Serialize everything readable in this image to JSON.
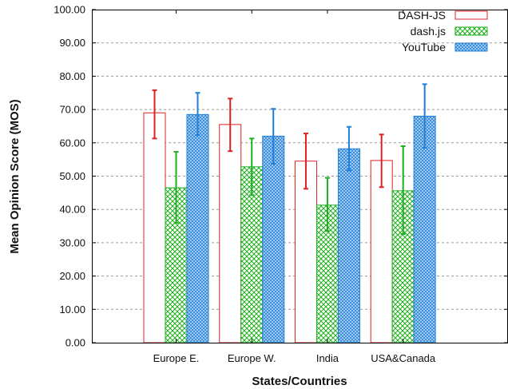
{
  "chart_data": {
    "type": "bar",
    "xlabel": "States/Countries",
    "ylabel": "Mean Opinion Score (MOS)",
    "ylim": [
      0,
      100
    ],
    "yticks": [
      "0.00",
      "10.00",
      "20.00",
      "30.00",
      "40.00",
      "50.00",
      "60.00",
      "70.00",
      "80.00",
      "90.00",
      "100.00"
    ],
    "grid": "horizontal dashed",
    "legend_position": "top-right",
    "categories": [
      "Europe E.",
      "Europe W.",
      "India",
      "USA&Canada"
    ],
    "series": [
      {
        "name": "DASH-JS",
        "pattern": "outline",
        "color": "#e02020",
        "values": [
          69.0,
          65.5,
          54.5,
          54.7
        ],
        "err_low": [
          61.3,
          57.5,
          46.2,
          46.7
        ],
        "err_high": [
          75.8,
          73.3,
          62.8,
          62.5
        ]
      },
      {
        "name": "dash.js",
        "pattern": "crosshatch",
        "color": "#1fae1f",
        "values": [
          46.5,
          52.8,
          41.3,
          45.6
        ],
        "err_low": [
          36.0,
          44.3,
          33.5,
          32.6
        ],
        "err_high": [
          57.3,
          61.3,
          49.5,
          59.0
        ]
      },
      {
        "name": "YouTube",
        "pattern": "dotted",
        "color": "#1f7fd9",
        "values": [
          68.5,
          62.0,
          58.2,
          68.0
        ],
        "err_low": [
          62.3,
          53.7,
          51.7,
          58.5
        ],
        "err_high": [
          75.0,
          70.2,
          64.8,
          77.6
        ]
      }
    ]
  }
}
